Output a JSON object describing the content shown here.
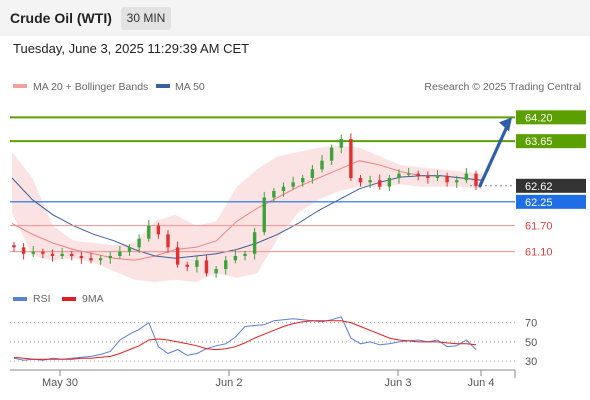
{
  "header": {
    "title": "Crude Oil (WTI)",
    "timeframe": "30 MIN",
    "datetime": "Tuesday, June 3, 2025 11:29:39 AM CET"
  },
  "legend": {
    "items": [
      {
        "label": "MA 20 + Bollinger Bands",
        "color": "#f4a0a0"
      },
      {
        "label": "MA 50",
        "color": "#3b5f9a"
      }
    ],
    "credit": "Research © 2025 Trading Central"
  },
  "rsi_legend": {
    "items": [
      {
        "label": "RSI",
        "color": "#5b7fd6"
      },
      {
        "label": "9MA",
        "color": "#e02020"
      }
    ]
  },
  "x_axis": {
    "labels": [
      "May 30",
      "Jun 2",
      "Jun 3",
      "Jun 4"
    ]
  },
  "colors": {
    "bull": "#3aa33a",
    "bear": "#e03030",
    "resistance": "#5aa000",
    "current": "#333333",
    "support_blue": "#1e6ee6",
    "support_red": "#e04040",
    "arrow": "#2f5fa8"
  },
  "chart_data": [
    {
      "type": "candlestick",
      "title": "",
      "ylim": [
        60.4,
        64.6
      ],
      "current_price": 62.62,
      "levels": [
        {
          "value": 64.2,
          "label": "64.20",
          "kind": "resistance"
        },
        {
          "value": 63.65,
          "label": "63.65",
          "kind": "resistance"
        },
        {
          "value": 62.62,
          "label": "62.62",
          "kind": "current"
        },
        {
          "value": 62.25,
          "label": "62.25",
          "kind": "pivot"
        },
        {
          "value": 61.7,
          "label": "61.70",
          "kind": "support"
        },
        {
          "value": 61.1,
          "label": "61.10",
          "kind": "support"
        }
      ],
      "forecast_arrow": {
        "from": 62.62,
        "to": 64.2
      },
      "series": [
        {
          "name": "MA 20 + Bollinger Bands",
          "ma": [
            61.75,
            61.5,
            61.3,
            61.15,
            61.05,
            60.95,
            60.9,
            61.0,
            61.15,
            61.2,
            61.35,
            61.8,
            62.1,
            62.35,
            62.6,
            62.8,
            63.0,
            63.2,
            63.1,
            62.95,
            62.85,
            62.85,
            62.8,
            62.75
          ],
          "upper": [
            63.4,
            62.8,
            61.7,
            61.35,
            61.3,
            61.25,
            61.3,
            61.8,
            61.95,
            61.7,
            61.8,
            62.6,
            63.0,
            63.3,
            63.4,
            63.5,
            63.55,
            63.5,
            63.3,
            63.1,
            63.05,
            63.0,
            62.95,
            62.9
          ],
          "lower": [
            62.0,
            61.0,
            60.9,
            60.95,
            60.85,
            60.65,
            60.45,
            60.4,
            60.45,
            60.4,
            60.6,
            60.5,
            60.6,
            61.4,
            62.0,
            62.3,
            62.5,
            62.6,
            62.6,
            62.65,
            62.6,
            62.6,
            62.6,
            62.55
          ]
        },
        {
          "name": "MA 50",
          "values": [
            62.8,
            62.3,
            61.95,
            61.7,
            61.5,
            61.35,
            61.15,
            61.0,
            60.95,
            61.0,
            61.05,
            61.15,
            61.3,
            61.5,
            61.75,
            62.05,
            62.3,
            62.55,
            62.7,
            62.82,
            62.85,
            62.85,
            62.8,
            62.75
          ]
        }
      ],
      "candles": [
        61.2,
        61.05,
        61.1,
        61.05,
        61.0,
        61.05,
        61.0,
        60.95,
        60.9,
        60.95,
        61.0,
        61.1,
        61.2,
        61.4,
        61.7,
        61.5,
        61.2,
        60.8,
        60.75,
        60.9,
        60.6,
        60.7,
        60.9,
        61.0,
        61.05,
        61.55,
        62.35,
        62.5,
        62.6,
        62.7,
        62.8,
        63.0,
        63.2,
        63.5,
        63.7,
        62.8,
        62.7,
        62.75,
        62.6,
        62.8,
        62.9,
        62.9,
        62.85,
        62.8,
        62.85,
        62.7,
        62.75,
        62.9,
        62.62
      ]
    },
    {
      "type": "line",
      "title": "",
      "ylim": [
        25,
        80
      ],
      "ticks": [
        70,
        50,
        30
      ],
      "series": [
        {
          "name": "RSI",
          "values": [
            33,
            31,
            32,
            31,
            33,
            32,
            33,
            34,
            35,
            37,
            40,
            52,
            58,
            63,
            70,
            45,
            38,
            42,
            36,
            38,
            43,
            46,
            48,
            55,
            66,
            67,
            68,
            72,
            73,
            74,
            73,
            72,
            71,
            73,
            76,
            54,
            48,
            50,
            47,
            48,
            50,
            51,
            52,
            50,
            52,
            45,
            46,
            52,
            42
          ]
        },
        {
          "name": "9MA",
          "values": [
            34,
            33,
            32,
            32,
            32,
            32,
            32,
            33,
            33,
            34,
            35,
            38,
            42,
            46,
            52,
            53,
            52,
            50,
            48,
            46,
            43,
            42,
            43,
            45,
            49,
            54,
            58,
            62,
            66,
            69,
            71,
            72,
            72,
            72,
            72,
            70,
            66,
            62,
            58,
            54,
            52,
            51,
            50,
            50,
            50,
            49,
            48,
            48,
            47
          ]
        }
      ]
    }
  ]
}
